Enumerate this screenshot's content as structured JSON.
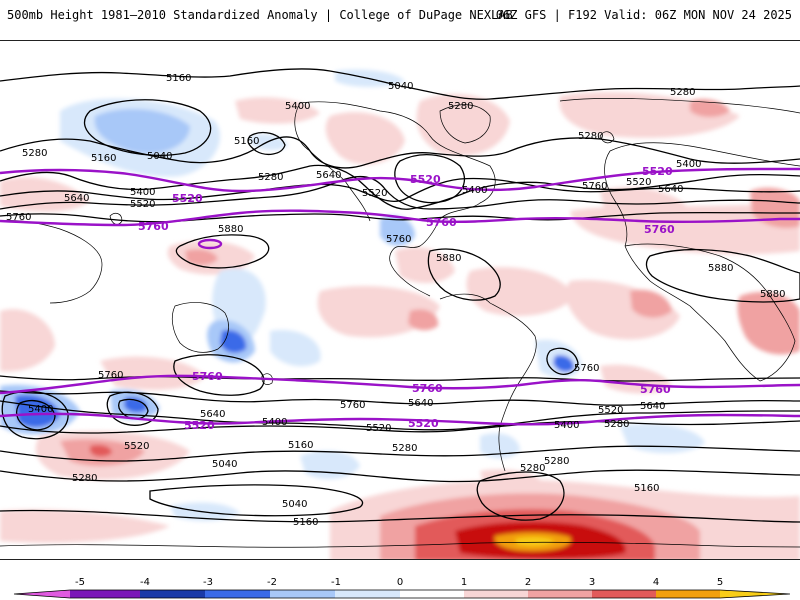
{
  "header": {
    "title_left": "500mb Height 1981–2010 Standardized Anomaly | College of DuPage NEXLAB",
    "title_right": "06Z GFS | F192 Valid: 06Z MON NOV 24 2025"
  },
  "colors": {
    "contour": "#000000",
    "highlight_contour": "#9a12c8",
    "scale": [
      "#e05ae0",
      "#7a16b8",
      "#1a3aa8",
      "#3a6ae8",
      "#a8c8f8",
      "#d8e8fb",
      "#ffffff",
      "#f8d6d6",
      "#f0a2a2",
      "#e25a5a",
      "#c81010",
      "#f2a00e",
      "#f8ce18"
    ]
  },
  "colorbar": {
    "ticks": [
      "-5",
      "-4",
      "-3",
      "-2",
      "-1",
      "0",
      "1",
      "2",
      "3",
      "4",
      "5"
    ]
  },
  "height_labels": [
    {
      "text": "5160",
      "highlight": false
    },
    {
      "text": "5040",
      "highlight": false
    },
    {
      "text": "5280",
      "highlight": false
    },
    {
      "text": "5280",
      "highlight": false
    },
    {
      "text": "5400",
      "highlight": false
    },
    {
      "text": "5160",
      "highlight": false
    },
    {
      "text": "5040",
      "highlight": false
    },
    {
      "text": "5280",
      "highlight": false
    },
    {
      "text": "5160",
      "highlight": false
    },
    {
      "text": "5280",
      "highlight": false
    },
    {
      "text": "5640",
      "highlight": false
    },
    {
      "text": "5400",
      "highlight": false
    },
    {
      "text": "5520",
      "highlight": false
    },
    {
      "text": "5520",
      "highlight": true
    },
    {
      "text": "5760",
      "highlight": false
    },
    {
      "text": "5640",
      "highlight": false
    },
    {
      "text": "5520",
      "highlight": false
    },
    {
      "text": "5520",
      "highlight": true
    },
    {
      "text": "5400",
      "highlight": false
    },
    {
      "text": "5280",
      "highlight": false
    },
    {
      "text": "5400",
      "highlight": false
    },
    {
      "text": "5520",
      "highlight": true
    },
    {
      "text": "5520",
      "highlight": false
    },
    {
      "text": "5640",
      "highlight": false
    },
    {
      "text": "5760",
      "highlight": false
    },
    {
      "text": "5760",
      "highlight": true
    },
    {
      "text": "5880",
      "highlight": false
    },
    {
      "text": "5760",
      "highlight": true
    },
    {
      "text": "5760",
      "highlight": false
    },
    {
      "text": "5880",
      "highlight": false
    },
    {
      "text": "5760",
      "highlight": true
    },
    {
      "text": "5880",
      "highlight": false
    },
    {
      "text": "5880",
      "highlight": false
    },
    {
      "text": "5760",
      "highlight": false
    },
    {
      "text": "5760",
      "highlight": true
    },
    {
      "text": "5760",
      "highlight": true
    },
    {
      "text": "5760",
      "highlight": false
    },
    {
      "text": "5760",
      "highlight": true
    },
    {
      "text": "5400",
      "highlight": false
    },
    {
      "text": "5640",
      "highlight": false
    },
    {
      "text": "5760",
      "highlight": false
    },
    {
      "text": "5640",
      "highlight": false
    },
    {
      "text": "5520",
      "highlight": false
    },
    {
      "text": "5640",
      "highlight": false
    },
    {
      "text": "5520",
      "highlight": true
    },
    {
      "text": "5400",
      "highlight": false
    },
    {
      "text": "5520",
      "highlight": false
    },
    {
      "text": "5520",
      "highlight": true
    },
    {
      "text": "5280",
      "highlight": false
    },
    {
      "text": "5400",
      "highlight": false
    },
    {
      "text": "5280",
      "highlight": false
    },
    {
      "text": "5520",
      "highlight": false
    },
    {
      "text": "5280",
      "highlight": false
    },
    {
      "text": "5160",
      "highlight": false
    },
    {
      "text": "5280",
      "highlight": false
    },
    {
      "text": "5040",
      "highlight": false
    },
    {
      "text": "5160",
      "highlight": false
    },
    {
      "text": "5040",
      "highlight": false
    },
    {
      "text": "5160",
      "highlight": false
    },
    {
      "text": "5280",
      "highlight": false
    }
  ]
}
